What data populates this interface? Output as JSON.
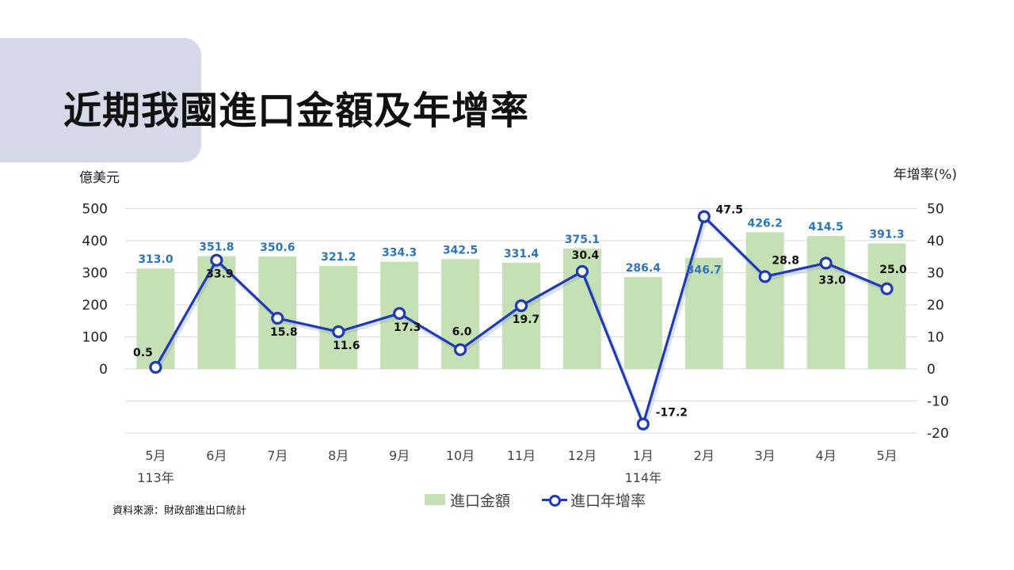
{
  "page": {
    "title": "近期我國進口金額及年增率",
    "source": "資料來源：財政部進出口統計"
  },
  "colors": {
    "bar": "#c5e0b4",
    "line": "#1f3bb3",
    "bar_label": "#2e75b6",
    "line_label": "#111111",
    "title_box": "#d5d9e8"
  },
  "chart_data": {
    "type": "bar",
    "categories": [
      "5月",
      "6月",
      "7月",
      "8月",
      "9月",
      "10月",
      "11月",
      "12月",
      "1月",
      "2月",
      "3月",
      "4月",
      "5月"
    ],
    "year_labels": [
      {
        "index": 0,
        "label": "113年"
      },
      {
        "index": 8,
        "label": "114年"
      }
    ],
    "series": [
      {
        "name": "進口金額",
        "type": "bar",
        "axis": "left",
        "values": [
          313.0,
          351.8,
          350.6,
          321.2,
          334.3,
          342.5,
          331.4,
          375.1,
          286.4,
          346.7,
          426.2,
          414.5,
          391.3
        ]
      },
      {
        "name": "進口年增率",
        "type": "line",
        "axis": "right",
        "values": [
          0.5,
          33.9,
          15.8,
          11.6,
          17.3,
          6.0,
          19.7,
          30.4,
          -17.2,
          47.5,
          28.8,
          33.0,
          25.0
        ]
      }
    ],
    "yleft_label": "億美元",
    "yleft_ticks": [
      0,
      100,
      200,
      300,
      400,
      500
    ],
    "yright_label": "年增率(%)",
    "yright_ticks": [
      -20,
      -10,
      0,
      10,
      20,
      30,
      40,
      50
    ],
    "yright_lim": [
      -20,
      50
    ],
    "grid": true,
    "legend": "bottom-center"
  }
}
